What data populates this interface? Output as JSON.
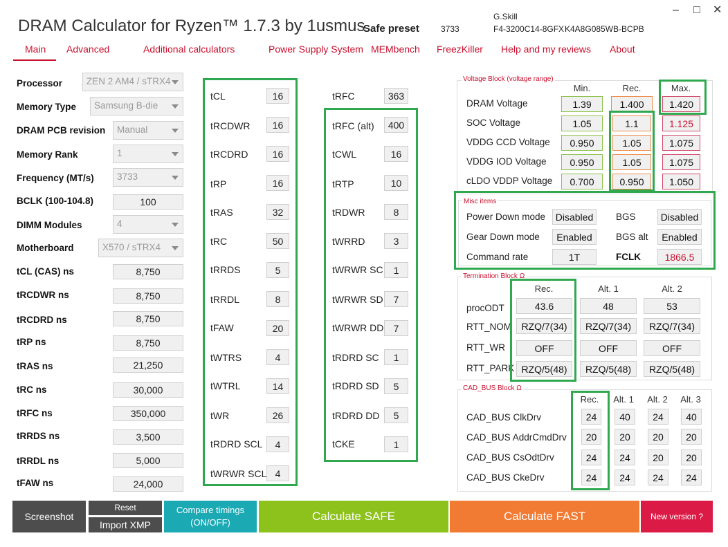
{
  "app": {
    "title": "DRAM Calculator for Ryzen™ 1.7.3 by 1usmus",
    "preset_label": "Safe preset",
    "preset_freq": "3733",
    "vendor": "G.Skill",
    "module_part": "F4-3200C14-8GFX",
    "module_serial": "K4A8G085WB-BCPB"
  },
  "window": {
    "minimize": "–",
    "maximize": "□",
    "close": "✕"
  },
  "nav": {
    "tabs": [
      "Main",
      "Advanced",
      "Additional calculators",
      "Power Supply System",
      "MEMbench",
      "FreezKiller",
      "Help and my reviews",
      "About"
    ]
  },
  "left": {
    "processor": {
      "label": "Processor",
      "value": "ZEN 2 AM4 / sTRX4"
    },
    "memory_type": {
      "label": "Memory Type",
      "value": "Samsung B-die"
    },
    "pcb": {
      "label": "DRAM PCB revision",
      "value": "Manual"
    },
    "rank": {
      "label": "Memory Rank",
      "value": "1"
    },
    "freq": {
      "label": "Frequency (MT/s)",
      "value": "3733"
    },
    "bclk": {
      "label": "BCLK (100-104.8)",
      "value": "100"
    },
    "dimm": {
      "label": "DIMM Modules",
      "value": "4"
    },
    "mb": {
      "label": "Motherboard",
      "value": "X570 / sTRX4"
    },
    "ns": [
      {
        "label": "tCL (CAS) ns",
        "value": "8,750"
      },
      {
        "label": "tRCDWR ns",
        "value": "8,750"
      },
      {
        "label": "tRCDRD ns",
        "value": "8,750"
      },
      {
        "label": "tRP ns",
        "value": "8,750"
      },
      {
        "label": "tRAS ns",
        "value": "21,250"
      },
      {
        "label": "tRC ns",
        "value": "30,000"
      },
      {
        "label": "tRFC ns",
        "value": "350,000"
      },
      {
        "label": "tRRDS ns",
        "value": "3,500"
      },
      {
        "label": "tRRDL ns",
        "value": "5,000"
      },
      {
        "label": "tFAW ns",
        "value": "24,000"
      }
    ]
  },
  "timings1": [
    {
      "label": "tCL",
      "value": "16"
    },
    {
      "label": "tRCDWR",
      "value": "16"
    },
    {
      "label": "tRCDRD",
      "value": "16"
    },
    {
      "label": "tRP",
      "value": "16"
    },
    {
      "label": "tRAS",
      "value": "32"
    },
    {
      "label": "tRC",
      "value": "50"
    },
    {
      "label": "tRRDS",
      "value": "5"
    },
    {
      "label": "tRRDL",
      "value": "8"
    },
    {
      "label": "tFAW",
      "value": "20"
    },
    {
      "label": "tWTRS",
      "value": "4"
    },
    {
      "label": "tWTRL",
      "value": "14"
    },
    {
      "label": "tWR",
      "value": "26"
    },
    {
      "label": "tRDRD SCL",
      "value": "4"
    },
    {
      "label": "tWRWR SCL",
      "value": "4"
    }
  ],
  "timings2": [
    {
      "label": "tRFC",
      "value": "363"
    },
    {
      "label": "tRFC (alt)",
      "value": "400"
    },
    {
      "label": "tCWL",
      "value": "16"
    },
    {
      "label": "tRTP",
      "value": "10"
    },
    {
      "label": "tRDWR",
      "value": "8"
    },
    {
      "label": "tWRRD",
      "value": "3"
    },
    {
      "label": "tWRWR SC",
      "value": "1"
    },
    {
      "label": "tWRWR SD",
      "value": "7"
    },
    {
      "label": "tWRWR DD",
      "value": "7"
    },
    {
      "label": "tRDRD SC",
      "value": "1"
    },
    {
      "label": "tRDRD SD",
      "value": "5"
    },
    {
      "label": "tRDRD DD",
      "value": "5"
    },
    {
      "label": "tCKE",
      "value": "1"
    }
  ],
  "voltage": {
    "title": "Voltage Block (voltage range)",
    "headers": [
      "Min.",
      "Rec.",
      "Max."
    ],
    "rows": [
      {
        "label": "DRAM Voltage",
        "min": "1.39",
        "rec": "1.400",
        "max": "1.420"
      },
      {
        "label": "SOC Voltage",
        "min": "1.05",
        "rec": "1.1",
        "max": "1.125"
      },
      {
        "label": "VDDG  CCD Voltage",
        "min": "0.950",
        "rec": "1.05",
        "max": "1.075"
      },
      {
        "label": "VDDG  IOD Voltage",
        "min": "0.950",
        "rec": "1.05",
        "max": "1.075"
      },
      {
        "label": "cLDO VDDP Voltage",
        "min": "0.700",
        "rec": "0.950",
        "max": "1.050"
      }
    ]
  },
  "misc": {
    "title": "Misc items",
    "pdm_label": "Power Down mode",
    "pdm_value": "Disabled",
    "bgs_label": "BGS",
    "bgs_value": "Disabled",
    "gdm_label": "Gear Down mode",
    "gdm_value": "Enabled",
    "bgsalt_label": "BGS alt",
    "bgsalt_value": "Enabled",
    "cr_label": "Command rate",
    "cr_value": "1T",
    "fclk_label": "FCLK",
    "fclk_value": "1866.5",
    "fclk_color": "#c8102e"
  },
  "termination": {
    "title": "Termination Block Ω",
    "headers": [
      "Rec.",
      "Alt. 1",
      "Alt. 2"
    ],
    "rows": [
      {
        "label": "procODT",
        "values": [
          "43.6",
          "48",
          "53"
        ]
      },
      {
        "label": "RTT_NOM",
        "values": [
          "RZQ/7(34)",
          "RZQ/7(34)",
          "RZQ/7(34)"
        ]
      },
      {
        "label": "RTT_WR",
        "values": [
          "OFF",
          "OFF",
          "OFF"
        ]
      },
      {
        "label": "RTT_PARK",
        "values": [
          "RZQ/5(48)",
          "RZQ/5(48)",
          "RZQ/5(48)"
        ]
      }
    ]
  },
  "cad": {
    "title": "CAD_BUS Block Ω",
    "headers": [
      "Rec.",
      "Alt. 1",
      "Alt. 2",
      "Alt. 3"
    ],
    "rows": [
      {
        "label": "CAD_BUS ClkDrv",
        "values": [
          "24",
          "40",
          "24",
          "40"
        ]
      },
      {
        "label": "CAD_BUS AddrCmdDrv",
        "values": [
          "20",
          "20",
          "20",
          "20"
        ]
      },
      {
        "label": "CAD_BUS CsOdtDrv",
        "values": [
          "24",
          "24",
          "20",
          "20"
        ]
      },
      {
        "label": "CAD_BUS CkeDrv",
        "values": [
          "24",
          "24",
          "24",
          "24"
        ]
      }
    ]
  },
  "buttons": {
    "screenshot": "Screenshot",
    "reset": "Reset",
    "import_xmp": "Import XMP",
    "compare1": "Compare timings",
    "compare2": "(ON/OFF)",
    "calc_safe": "Calculate SAFE",
    "calc_fast": "Calculate FAST",
    "new_version": "New version ?"
  },
  "colors": {
    "accent": "#c8102e",
    "highlight": "#2fa84f",
    "screenshot_bg": "#4d4d4d",
    "compare_bg": "#1ba9b4",
    "safe_bg": "#8cc21b",
    "fast_bg": "#f27b34",
    "newver_bg": "#dc1a46"
  }
}
